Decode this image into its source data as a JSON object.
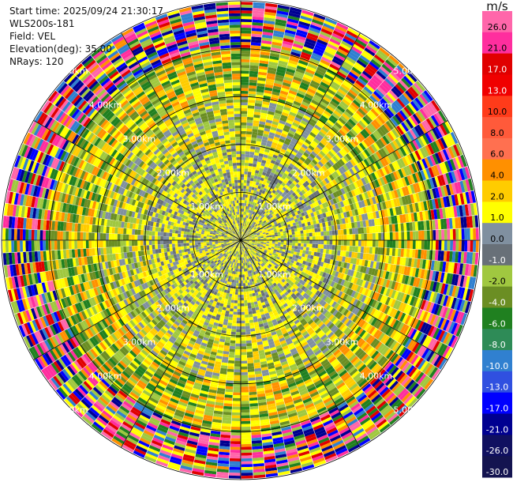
{
  "header": {
    "start_time": "Start time: 2025/09/24 21:30:17",
    "station": "WLS200s-181",
    "field": "Field: VEL",
    "elevation": "Elevation(deg): 35.00",
    "nrays": "NRays: 120"
  },
  "chart_data": {
    "type": "polar-ppi",
    "field": "VEL",
    "unit": "m/s",
    "n_rays": 120,
    "range_rings_km": [
      1.0,
      2.0,
      3.0,
      4.0,
      5.0
    ],
    "ring_labels": [
      "1.00km",
      "2.00km",
      "3.00km",
      "4.00km",
      "5.00km"
    ],
    "max_range_km": 5.0,
    "colorbar": {
      "levels": [
        "26.0",
        "21.0",
        "17.0",
        "13.0",
        "10.0",
        "8.0",
        "6.0",
        "4.0",
        "2.0",
        "1.0",
        "0.0",
        "-1.0",
        "-2.0",
        "-4.0",
        "-6.0",
        "-8.0",
        "-10.0",
        "-13.0",
        "-17.0",
        "-21.0",
        "-26.0",
        "-30.0"
      ],
      "colors": [
        "#ff66aa",
        "#ff2e9e",
        "#e00000",
        "#f00000",
        "#ff3b1a",
        "#ff5a3a",
        "#ff7050",
        "#ff9000",
        "#ffcc00",
        "#ffff00",
        "#8090a0",
        "#687078",
        "#a0c840",
        "#6b8e23",
        "#208020",
        "#2e8b57",
        "#3080d0",
        "#3050e0",
        "#0000ff",
        "#000090",
        "#101060",
        "#141450"
      ]
    },
    "bands": [
      {
        "from_km": 0.0,
        "to_km": 2.0,
        "mix": [
          "#ffff00",
          "#ffee00",
          "#8090a0",
          "#687078",
          "#a0c840"
        ]
      },
      {
        "from_km": 2.0,
        "to_km": 3.0,
        "mix": [
          "#8090a0",
          "#a0c840",
          "#6b8e23",
          "#ffff00",
          "#ffcc00"
        ]
      },
      {
        "from_km": 3.0,
        "to_km": 4.0,
        "mix": [
          "#a0c840",
          "#6b8e23",
          "#208020",
          "#ffcc00",
          "#ff9000",
          "#ffff00"
        ]
      },
      {
        "from_km": 4.0,
        "to_km": 5.0,
        "mix": [
          "#ff2e9e",
          "#ff66aa",
          "#e00000",
          "#0000ff",
          "#000090",
          "#ffff00",
          "#208020",
          "#3080d0",
          "#ff9000",
          "#a0c840"
        ]
      }
    ]
  }
}
